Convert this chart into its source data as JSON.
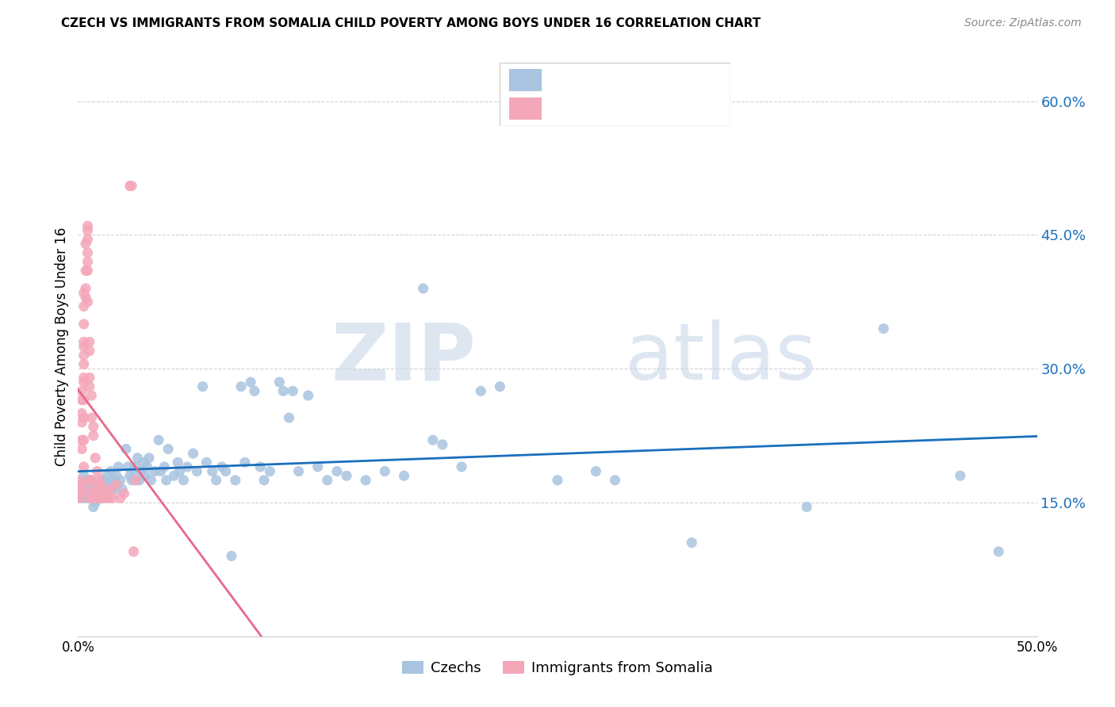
{
  "title": "CZECH VS IMMIGRANTS FROM SOMALIA CHILD POVERTY AMONG BOYS UNDER 16 CORRELATION CHART",
  "source": "Source: ZipAtlas.com",
  "ylabel": "Child Poverty Among Boys Under 16",
  "x_min": 0.0,
  "x_max": 0.5,
  "y_min": 0.0,
  "y_max": 0.65,
  "yticks": [
    0.15,
    0.3,
    0.45,
    0.6
  ],
  "ytick_labels": [
    "15.0%",
    "30.0%",
    "45.0%",
    "60.0%"
  ],
  "watermark_zip": "ZIP",
  "watermark_atlas": "atlas",
  "czech_color": "#a8c4e0",
  "somalia_color": "#f4a7b9",
  "czech_line_color": "#1a6fbd",
  "somalia_line_color": "#e8688a",
  "legend_text_color": "#1a6fbd",
  "background_color": "#ffffff",
  "grid_color": "#cccccc",
  "czechs_scatter": [
    [
      0.001,
      0.17
    ],
    [
      0.002,
      0.16
    ],
    [
      0.002,
      0.155
    ],
    [
      0.003,
      0.18
    ],
    [
      0.004,
      0.175
    ],
    [
      0.005,
      0.165
    ],
    [
      0.005,
      0.155
    ],
    [
      0.006,
      0.17
    ],
    [
      0.006,
      0.16
    ],
    [
      0.007,
      0.175
    ],
    [
      0.007,
      0.165
    ],
    [
      0.008,
      0.155
    ],
    [
      0.008,
      0.145
    ],
    [
      0.009,
      0.16
    ],
    [
      0.009,
      0.15
    ],
    [
      0.01,
      0.165
    ],
    [
      0.01,
      0.155
    ],
    [
      0.011,
      0.17
    ],
    [
      0.012,
      0.16
    ],
    [
      0.013,
      0.175
    ],
    [
      0.014,
      0.165
    ],
    [
      0.015,
      0.18
    ],
    [
      0.016,
      0.17
    ],
    [
      0.017,
      0.185
    ],
    [
      0.018,
      0.175
    ],
    [
      0.019,
      0.165
    ],
    [
      0.02,
      0.18
    ],
    [
      0.021,
      0.19
    ],
    [
      0.022,
      0.175
    ],
    [
      0.023,
      0.165
    ],
    [
      0.025,
      0.21
    ],
    [
      0.026,
      0.19
    ],
    [
      0.027,
      0.18
    ],
    [
      0.028,
      0.175
    ],
    [
      0.029,
      0.185
    ],
    [
      0.03,
      0.19
    ],
    [
      0.031,
      0.2
    ],
    [
      0.032,
      0.175
    ],
    [
      0.033,
      0.185
    ],
    [
      0.034,
      0.195
    ],
    [
      0.035,
      0.18
    ],
    [
      0.036,
      0.19
    ],
    [
      0.037,
      0.2
    ],
    [
      0.038,
      0.175
    ],
    [
      0.04,
      0.185
    ],
    [
      0.042,
      0.22
    ],
    [
      0.043,
      0.185
    ],
    [
      0.045,
      0.19
    ],
    [
      0.046,
      0.175
    ],
    [
      0.047,
      0.21
    ],
    [
      0.05,
      0.18
    ],
    [
      0.052,
      0.195
    ],
    [
      0.053,
      0.185
    ],
    [
      0.055,
      0.175
    ],
    [
      0.057,
      0.19
    ],
    [
      0.06,
      0.205
    ],
    [
      0.062,
      0.185
    ],
    [
      0.065,
      0.28
    ],
    [
      0.067,
      0.195
    ],
    [
      0.07,
      0.185
    ],
    [
      0.072,
      0.175
    ],
    [
      0.075,
      0.19
    ],
    [
      0.077,
      0.185
    ],
    [
      0.08,
      0.09
    ],
    [
      0.082,
      0.175
    ],
    [
      0.085,
      0.28
    ],
    [
      0.087,
      0.195
    ],
    [
      0.09,
      0.285
    ],
    [
      0.092,
      0.275
    ],
    [
      0.095,
      0.19
    ],
    [
      0.097,
      0.175
    ],
    [
      0.1,
      0.185
    ],
    [
      0.105,
      0.285
    ],
    [
      0.107,
      0.275
    ],
    [
      0.11,
      0.245
    ],
    [
      0.112,
      0.275
    ],
    [
      0.115,
      0.185
    ],
    [
      0.12,
      0.27
    ],
    [
      0.125,
      0.19
    ],
    [
      0.13,
      0.175
    ],
    [
      0.135,
      0.185
    ],
    [
      0.14,
      0.18
    ],
    [
      0.15,
      0.175
    ],
    [
      0.16,
      0.185
    ],
    [
      0.17,
      0.18
    ],
    [
      0.18,
      0.39
    ],
    [
      0.185,
      0.22
    ],
    [
      0.19,
      0.215
    ],
    [
      0.2,
      0.19
    ],
    [
      0.21,
      0.275
    ],
    [
      0.22,
      0.28
    ],
    [
      0.25,
      0.175
    ],
    [
      0.27,
      0.185
    ],
    [
      0.28,
      0.175
    ],
    [
      0.32,
      0.105
    ],
    [
      0.38,
      0.145
    ],
    [
      0.42,
      0.345
    ],
    [
      0.46,
      0.18
    ],
    [
      0.48,
      0.095
    ]
  ],
  "somalia_scatter": [
    [
      0.001,
      0.165
    ],
    [
      0.001,
      0.16
    ],
    [
      0.001,
      0.155
    ],
    [
      0.001,
      0.175
    ],
    [
      0.002,
      0.17
    ],
    [
      0.002,
      0.165
    ],
    [
      0.002,
      0.21
    ],
    [
      0.002,
      0.22
    ],
    [
      0.002,
      0.24
    ],
    [
      0.002,
      0.25
    ],
    [
      0.002,
      0.265
    ],
    [
      0.002,
      0.275
    ],
    [
      0.003,
      0.19
    ],
    [
      0.003,
      0.22
    ],
    [
      0.003,
      0.245
    ],
    [
      0.003,
      0.265
    ],
    [
      0.003,
      0.285
    ],
    [
      0.003,
      0.29
    ],
    [
      0.003,
      0.305
    ],
    [
      0.003,
      0.315
    ],
    [
      0.003,
      0.325
    ],
    [
      0.003,
      0.33
    ],
    [
      0.003,
      0.35
    ],
    [
      0.003,
      0.37
    ],
    [
      0.003,
      0.385
    ],
    [
      0.004,
      0.38
    ],
    [
      0.004,
      0.39
    ],
    [
      0.004,
      0.41
    ],
    [
      0.004,
      0.44
    ],
    [
      0.005,
      0.375
    ],
    [
      0.005,
      0.41
    ],
    [
      0.005,
      0.42
    ],
    [
      0.005,
      0.43
    ],
    [
      0.005,
      0.445
    ],
    [
      0.005,
      0.455
    ],
    [
      0.005,
      0.46
    ],
    [
      0.006,
      0.155
    ],
    [
      0.006,
      0.175
    ],
    [
      0.006,
      0.28
    ],
    [
      0.006,
      0.29
    ],
    [
      0.006,
      0.32
    ],
    [
      0.006,
      0.33
    ],
    [
      0.007,
      0.16
    ],
    [
      0.007,
      0.175
    ],
    [
      0.007,
      0.245
    ],
    [
      0.007,
      0.27
    ],
    [
      0.008,
      0.155
    ],
    [
      0.008,
      0.165
    ],
    [
      0.008,
      0.225
    ],
    [
      0.008,
      0.235
    ],
    [
      0.009,
      0.155
    ],
    [
      0.009,
      0.16
    ],
    [
      0.009,
      0.2
    ],
    [
      0.01,
      0.155
    ],
    [
      0.01,
      0.185
    ],
    [
      0.011,
      0.155
    ],
    [
      0.011,
      0.175
    ],
    [
      0.012,
      0.155
    ],
    [
      0.012,
      0.17
    ],
    [
      0.013,
      0.155
    ],
    [
      0.013,
      0.165
    ],
    [
      0.014,
      0.155
    ],
    [
      0.015,
      0.16
    ],
    [
      0.016,
      0.155
    ],
    [
      0.017,
      0.165
    ],
    [
      0.018,
      0.155
    ],
    [
      0.02,
      0.17
    ],
    [
      0.022,
      0.155
    ],
    [
      0.024,
      0.16
    ],
    [
      0.027,
      0.505
    ],
    [
      0.028,
      0.505
    ],
    [
      0.029,
      0.095
    ],
    [
      0.03,
      0.175
    ]
  ]
}
